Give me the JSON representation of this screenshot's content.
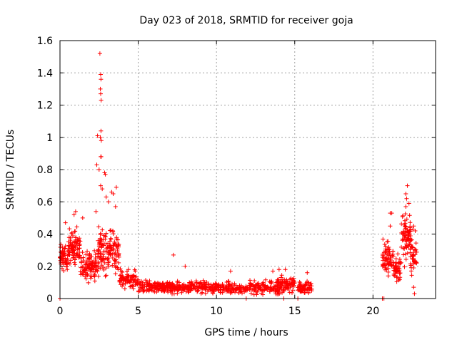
{
  "chart_data": {
    "type": "scatter",
    "title": "Day 023 of 2018, SRMTID for receiver goja",
    "xlabel": "GPS time / hours",
    "ylabel": "SRMTID / TECUs",
    "xlim": [
      0,
      24
    ],
    "ylim": [
      0,
      1.6
    ],
    "x_ticks": [
      0,
      5,
      10,
      15,
      20
    ],
    "x_tick_labels": [
      "0",
      "5",
      "10",
      "15",
      "20"
    ],
    "y_ticks": [
      0,
      0.2,
      0.4,
      0.6,
      0.8,
      1.0,
      1.2,
      1.4,
      1.6
    ],
    "y_tick_labels": [
      "0",
      "0.2",
      "0.4",
      "0.6",
      "0.8",
      "1",
      "1.2",
      "1.4",
      "1.6"
    ],
    "grid": true,
    "marker": "+",
    "color": "#ff0000",
    "series": [
      {
        "name": "SRMTID",
        "segments": [
          {
            "x_start": 0.0,
            "x_end": 0.5,
            "y_center": 0.25,
            "y_spread": 0.12,
            "count": 60
          },
          {
            "x_start": 0.5,
            "x_end": 1.3,
            "y_center": 0.32,
            "y_spread": 0.14,
            "count": 90
          },
          {
            "x_start": 1.3,
            "x_end": 2.0,
            "y_center": 0.2,
            "y_spread": 0.12,
            "count": 60
          },
          {
            "x_start": 2.0,
            "x_end": 2.4,
            "y_center": 0.2,
            "y_spread": 0.12,
            "count": 40
          },
          {
            "x_start": 2.4,
            "x_end": 3.0,
            "y_center": 0.3,
            "y_spread": 0.2,
            "count": 70
          },
          {
            "x_start": 3.0,
            "x_end": 3.8,
            "y_center": 0.3,
            "y_spread": 0.18,
            "count": 80
          },
          {
            "x_start": 3.8,
            "x_end": 5.0,
            "y_center": 0.12,
            "y_spread": 0.08,
            "count": 90
          },
          {
            "x_start": 5.0,
            "x_end": 7.5,
            "y_center": 0.07,
            "y_spread": 0.05,
            "count": 180
          },
          {
            "x_start": 7.5,
            "x_end": 11.0,
            "y_center": 0.07,
            "y_spread": 0.05,
            "count": 230
          },
          {
            "x_start": 11.0,
            "x_end": 12.0,
            "y_center": 0.06,
            "y_spread": 0.04,
            "count": 50
          },
          {
            "x_start": 12.1,
            "x_end": 14.0,
            "y_center": 0.07,
            "y_spread": 0.06,
            "count": 130
          },
          {
            "x_start": 14.0,
            "x_end": 15.0,
            "y_center": 0.09,
            "y_spread": 0.07,
            "count": 80
          },
          {
            "x_start": 15.2,
            "x_end": 16.1,
            "y_center": 0.07,
            "y_spread": 0.05,
            "count": 70
          },
          {
            "x_start": 20.6,
            "x_end": 21.3,
            "y_center": 0.25,
            "y_spread": 0.14,
            "count": 70
          },
          {
            "x_start": 21.3,
            "x_end": 21.8,
            "y_center": 0.18,
            "y_spread": 0.12,
            "count": 50
          },
          {
            "x_start": 21.8,
            "x_end": 22.4,
            "y_center": 0.38,
            "y_spread": 0.2,
            "count": 80
          },
          {
            "x_start": 22.4,
            "x_end": 22.8,
            "y_center": 0.25,
            "y_spread": 0.15,
            "count": 40
          }
        ],
        "outliers": [
          [
            2.55,
            1.52
          ],
          [
            2.6,
            1.39
          ],
          [
            2.62,
            1.36
          ],
          [
            2.58,
            1.3
          ],
          [
            2.6,
            1.27
          ],
          [
            2.63,
            1.23
          ],
          [
            2.4,
            1.01
          ],
          [
            2.62,
            1.04
          ],
          [
            2.58,
            1.0
          ],
          [
            2.64,
            0.98
          ],
          [
            2.61,
            0.88
          ],
          [
            2.63,
            0.88
          ],
          [
            2.35,
            0.83
          ],
          [
            2.5,
            0.8
          ],
          [
            2.9,
            0.77
          ],
          [
            2.85,
            0.78
          ],
          [
            2.6,
            0.7
          ],
          [
            2.7,
            0.68
          ],
          [
            3.3,
            0.66
          ],
          [
            3.6,
            0.69
          ],
          [
            3.4,
            0.65
          ],
          [
            3.1,
            0.6
          ],
          [
            2.95,
            0.63
          ],
          [
            3.55,
            0.57
          ],
          [
            1.0,
            0.54
          ],
          [
            1.45,
            0.5
          ],
          [
            2.3,
            0.54
          ],
          [
            0.9,
            0.52
          ],
          [
            0.35,
            0.47
          ],
          [
            7.25,
            0.27
          ],
          [
            8.0,
            0.2
          ],
          [
            10.9,
            0.17
          ],
          [
            13.6,
            0.17
          ],
          [
            14.0,
            0.18
          ],
          [
            14.4,
            0.18
          ],
          [
            15.8,
            0.16
          ],
          [
            21.1,
            0.53
          ],
          [
            21.2,
            0.53
          ],
          [
            22.2,
            0.7
          ],
          [
            22.1,
            0.65
          ],
          [
            22.15,
            0.62
          ],
          [
            22.3,
            0.59
          ],
          [
            22.1,
            0.57
          ],
          [
            22.6,
            0.45
          ],
          [
            22.55,
            0.43
          ],
          [
            22.7,
            0.42
          ],
          [
            22.65,
            0.03
          ],
          [
            22.6,
            0.07
          ],
          [
            21.1,
            0.45
          ]
        ],
        "baseline_points": [
          [
            0.0,
            0.0
          ],
          [
            11.9,
            0.0
          ],
          [
            14.3,
            0.0
          ],
          [
            15.2,
            0.0
          ],
          [
            20.6,
            0.0
          ],
          [
            20.7,
            0.0
          ]
        ]
      }
    ]
  }
}
